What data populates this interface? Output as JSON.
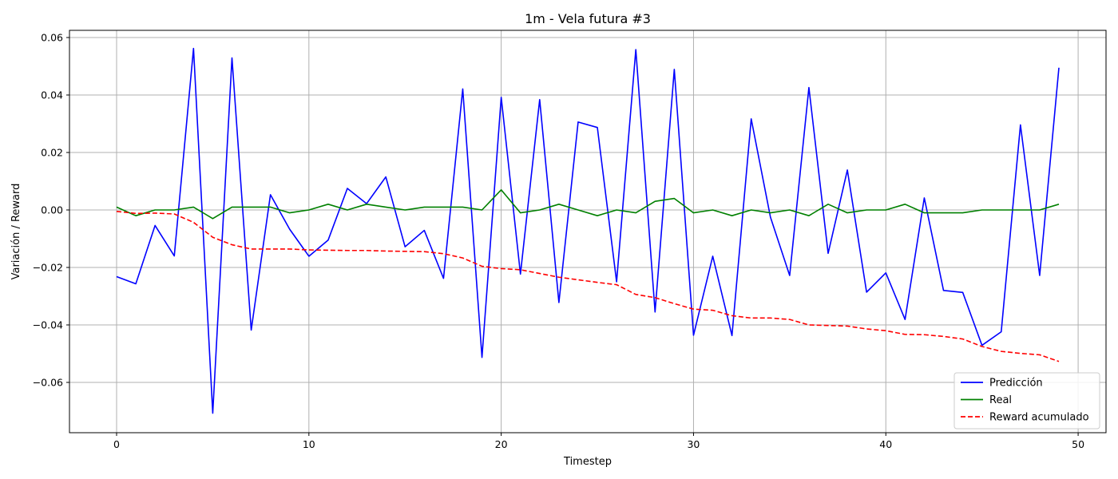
{
  "chart_data": {
    "type": "line",
    "title": "1m - Vela futura #3",
    "xlabel": "Timestep",
    "ylabel": "Variación / Reward",
    "xlim": [
      -2.45,
      51.45
    ],
    "ylim": [
      -0.0775,
      0.0625
    ],
    "x_ticks": [
      0,
      10,
      20,
      30,
      40,
      50
    ],
    "y_ticks": [
      -0.06,
      -0.04,
      -0.02,
      0.0,
      0.02,
      0.04,
      0.06
    ],
    "y_tick_labels": [
      "−0.06",
      "−0.04",
      "−0.02",
      "0.00",
      "0.02",
      "0.04",
      "0.06"
    ],
    "grid": true,
    "legend_position": "lower-right",
    "x": [
      0,
      1,
      2,
      3,
      4,
      5,
      6,
      7,
      8,
      9,
      10,
      11,
      12,
      13,
      14,
      15,
      16,
      17,
      18,
      19,
      20,
      21,
      22,
      23,
      24,
      25,
      26,
      27,
      28,
      29,
      30,
      31,
      32,
      33,
      34,
      35,
      36,
      37,
      38,
      39,
      40,
      41,
      42,
      43,
      44,
      45,
      46,
      47,
      48,
      49
    ],
    "series": [
      {
        "name": "Predicción",
        "color": "#0000ff",
        "style": "solid",
        "values": [
          -0.0232,
          -0.0257,
          -0.0054,
          -0.016,
          0.0562,
          -0.0707,
          0.0529,
          -0.0418,
          0.0053,
          -0.0067,
          -0.0161,
          -0.0105,
          0.0075,
          0.0022,
          0.0115,
          -0.0128,
          -0.0071,
          -0.0238,
          0.0421,
          -0.0513,
          0.0392,
          -0.0223,
          0.0384,
          -0.0322,
          0.0306,
          0.0287,
          -0.025,
          0.0558,
          -0.0355,
          0.0489,
          -0.0436,
          -0.0161,
          -0.0437,
          0.0317,
          -0.0025,
          -0.0228,
          0.0426,
          -0.0151,
          0.0139,
          -0.0286,
          -0.0219,
          -0.0381,
          0.0042,
          -0.028,
          -0.0287,
          -0.0471,
          -0.0424,
          0.0296,
          -0.0228,
          0.0495
        ]
      },
      {
        "name": "Real",
        "color": "#008000",
        "style": "solid",
        "values": [
          0.001,
          -0.002,
          0.0,
          0.0,
          0.001,
          -0.003,
          0.001,
          0.001,
          0.001,
          -0.001,
          0.0,
          0.002,
          0.0,
          0.002,
          0.001,
          0.0,
          0.001,
          0.001,
          0.001,
          0.0,
          0.007,
          -0.001,
          0.0,
          0.002,
          0.0,
          -0.002,
          0.0,
          -0.001,
          0.003,
          0.004,
          -0.001,
          0.0,
          -0.002,
          0.0,
          -0.001,
          0.0,
          -0.002,
          0.002,
          -0.001,
          0.0,
          0.0,
          0.002,
          -0.001,
          -0.001,
          -0.001,
          0.0,
          0.0,
          0.0,
          0.0,
          0.002
        ]
      },
      {
        "name": "Reward acumulado",
        "color": "#ff0000",
        "style": "dashed",
        "values": [
          -0.0005,
          -0.0012,
          -0.0011,
          -0.0014,
          -0.0043,
          -0.0095,
          -0.0121,
          -0.0136,
          -0.0136,
          -0.0136,
          -0.0139,
          -0.014,
          -0.0141,
          -0.0141,
          -0.0143,
          -0.0144,
          -0.0145,
          -0.0152,
          -0.0167,
          -0.0196,
          -0.0204,
          -0.0208,
          -0.0221,
          -0.0234,
          -0.0243,
          -0.0252,
          -0.026,
          -0.0294,
          -0.0305,
          -0.0326,
          -0.0345,
          -0.0349,
          -0.0368,
          -0.0376,
          -0.0376,
          -0.0381,
          -0.04,
          -0.0402,
          -0.0404,
          -0.0414,
          -0.042,
          -0.0433,
          -0.0434,
          -0.044,
          -0.0449,
          -0.0475,
          -0.0492,
          -0.0499,
          -0.0504,
          -0.0527
        ]
      }
    ]
  }
}
